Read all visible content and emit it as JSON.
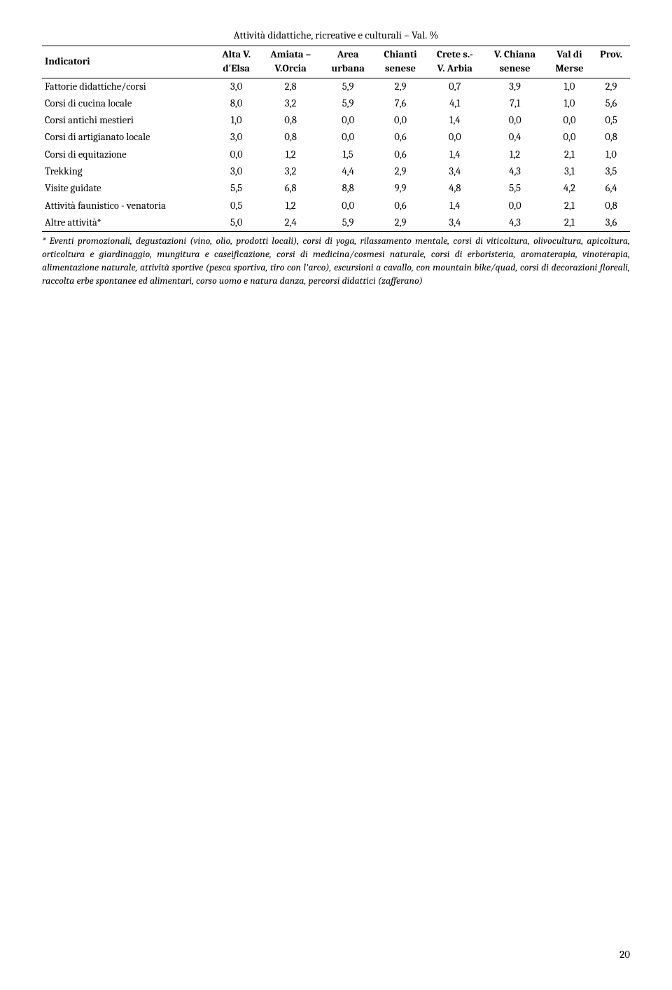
{
  "title": "Attività didattiche, ricreative e culturali – Val. %",
  "table": {
    "columns": [
      {
        "line1": "Indicatori",
        "line2": ""
      },
      {
        "line1": "Alta V.",
        "line2": "d'Elsa"
      },
      {
        "line1": "Amiata –",
        "line2": "V.Orcia"
      },
      {
        "line1": "Area",
        "line2": "urbana"
      },
      {
        "line1": "Chianti",
        "line2": "senese"
      },
      {
        "line1": "Crete s.-",
        "line2": "V. Arbia"
      },
      {
        "line1": "V. Chiana",
        "line2": "senese"
      },
      {
        "line1": "Val di",
        "line2": "Merse"
      },
      {
        "line1": "Prov.",
        "line2": ""
      }
    ],
    "rows": [
      {
        "label": "Fattorie didattiche/corsi",
        "values": [
          "3,0",
          "2,8",
          "5,9",
          "2,9",
          "0,7",
          "3,9",
          "1,0",
          "2,9"
        ]
      },
      {
        "label": "Corsi di cucina locale",
        "values": [
          "8,0",
          "3,2",
          "5,9",
          "7,6",
          "4,1",
          "7,1",
          "1,0",
          "5,6"
        ]
      },
      {
        "label": "Corsi antichi mestieri",
        "values": [
          "1,0",
          "0,8",
          "0,0",
          "0,0",
          "1,4",
          "0,0",
          "0,0",
          "0,5"
        ]
      },
      {
        "label": "Corsi di artigianato locale",
        "values": [
          "3,0",
          "0,8",
          "0,0",
          "0,6",
          "0,0",
          "0,4",
          "0,0",
          "0,8"
        ]
      },
      {
        "label": "Corsi di equitazione",
        "values": [
          "0,0",
          "1,2",
          "1,5",
          "0,6",
          "1,4",
          "1,2",
          "2,1",
          "1,0"
        ]
      },
      {
        "label": "Trekking",
        "values": [
          "3,0",
          "3,2",
          "4,4",
          "2,9",
          "3,4",
          "4,3",
          "3,1",
          "3,5"
        ]
      },
      {
        "label": "Visite guidate",
        "values": [
          "5,5",
          "6,8",
          "8,8",
          "9,9",
          "4,8",
          "5,5",
          "4,2",
          "6,4"
        ]
      },
      {
        "label": "Attività faunistico - venatoria",
        "values": [
          "0,5",
          "1,2",
          "0,0",
          "0,6",
          "1,4",
          "0,0",
          "2,1",
          "0,8"
        ]
      },
      {
        "label": "Altre attività*",
        "values": [
          "5,0",
          "2,4",
          "5,9",
          "2,9",
          "3,4",
          "4,3",
          "2,1",
          "3,6"
        ]
      }
    ]
  },
  "footnote": "* Eventi promozionali, degustazioni (vino, olio, prodotti locali), corsi di yoga, rilassamento mentale, corsi di viticoltura, olivocultura, apicoltura, orticoltura e giardinaggio, mungitura e caseificazione, corsi di medicina/cosmesi naturale, corsi di erboristeria, aromaterapia, vinoterapia, alimentazione naturale, attività sportive (pesca sportiva, tiro con l'arco), escursioni a cavallo, con mountain bike/quad, corsi di decorazioni floreali, raccolta erbe spontanee ed alimentari, corso uomo e natura danza, percorsi didattici (zafferano)",
  "page_number": "20",
  "colors": {
    "background": "#ffffff",
    "text": "#000000",
    "border": "#000000"
  }
}
